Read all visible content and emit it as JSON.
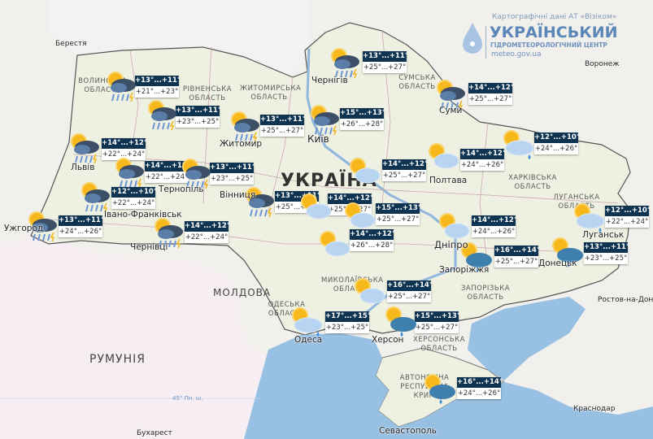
{
  "header": {
    "source": "Картографічні дані АТ «Візіком»",
    "org_title": "УКРАЇНСЬКИЙ",
    "org_subtitle": "ГІДРОМЕТЕОРОЛОГІЧНИЙ ЦЕНТР",
    "website": "meteo.gov.ua"
  },
  "colors": {
    "land": "#f1f0ec",
    "ukraine": "#eef0e2",
    "romania": "#f6eef3",
    "sea": "#98c0e2",
    "box_header": "#0e3452"
  },
  "labels": {
    "countries": {
      "ukraine": "УКРАЇНА",
      "moldova": "МОЛДОВА",
      "romania": "РУМУНІЯ"
    },
    "cities": {
      "berestia": "Берестя",
      "chernihiv": "Чернігів",
      "sumy": "Суми",
      "zhytomyr": "Житомир",
      "kyiv": "Київ",
      "lviv": "Львів",
      "ternopil": "Тернопіль",
      "ivano_frankivsk": "Івано-Франківськ",
      "uzhhorod": "Ужгород",
      "chernivtsi": "Чернівці",
      "vinnytsia": "Вінниця",
      "poltava": "Полтава",
      "dnipro": "Дніпро",
      "zaporizhzhia": "Запоріжжя",
      "donetsk": "Донецьк",
      "luhansk": "Луганськ",
      "odesa": "Одеса",
      "kherson": "Херсон",
      "sevastopol": "Севастополь",
      "voronezh": "Воронеж",
      "rostov": "Ростов-на-Дону",
      "krasnodar": "Краснодар",
      "bucharest": "Бухарест"
    },
    "regions": {
      "volyn": "ВОЛИНСЬКА ОБЛАСТЬ",
      "rivne": "РІВНЕНСЬКА ОБЛАСТЬ",
      "zhytomyr": "ЖИТОМИРСЬКА ОБЛАСТЬ",
      "sumy": "СУМСЬКА ОБЛАСТЬ",
      "kharkiv": "ХАРКІВСЬКА ОБЛАСТЬ",
      "luhansk": "ЛУГАНСЬКА ОБЛАСТЬ",
      "zaporizhzhia": "ЗАПОРІЗЬКА ОБЛАСТЬ",
      "mykolaiv": "МИКОЛАЇВСЬКА ОБЛАСТЬ",
      "odesa": "ОДЕСЬКА ОБЛАСТЬ",
      "kherson": "ХЕРСОНСЬКА ОБЛАСТЬ",
      "crimea": "АВТОНОМНА РЕСПУБЛІКА КРИМ"
    },
    "parallel": "45° Пн. ш."
  },
  "forecasts": [
    {
      "place": "volyn",
      "icon": "thunderstorm",
      "night": "+13°...+11°",
      "day": "+21°...+23°"
    },
    {
      "place": "rivne",
      "icon": "thunderstorm",
      "night": "+13°...+11°",
      "day": "+23°...+25°"
    },
    {
      "place": "zhytomyr",
      "icon": "thunderstorm",
      "night": "+13°...+11°",
      "day": "+25°...+27°"
    },
    {
      "place": "chernihiv",
      "icon": "thunderstorm",
      "night": "+13°...+11°",
      "day": "+25°...+27°"
    },
    {
      "place": "kyiv",
      "icon": "thunderstorm",
      "night": "+15°...+13°",
      "day": "+26°...+28°"
    },
    {
      "place": "sumy",
      "icon": "thunderstorm",
      "night": "+14°...+12°",
      "day": "+25°...+27°"
    },
    {
      "place": "kharkiv",
      "icon": "light-rain",
      "night": "+12°...+10°",
      "day": "+24°...+26°"
    },
    {
      "place": "poltava",
      "icon": "partly-cloudy",
      "night": "+14°...+12°",
      "day": "+24°...+26°"
    },
    {
      "place": "cherkasy",
      "icon": "partly-cloudy",
      "night": "+14°...+12°",
      "day": "+25°...+27°"
    },
    {
      "place": "lviv",
      "icon": "thunderstorm",
      "night": "+14°...+12°",
      "day": "+22°...+24°"
    },
    {
      "place": "ternopil",
      "icon": "thunderstorm",
      "night": "+14°...+12°",
      "day": "+22°...+24°"
    },
    {
      "place": "khmelnytskyi",
      "icon": "thunderstorm",
      "night": "+13°...+11°",
      "day": "+23°...+25°"
    },
    {
      "place": "ivano-frankivsk",
      "icon": "thunderstorm",
      "night": "+12°...+10°",
      "day": "+22°...+24°"
    },
    {
      "place": "zakarpattia",
      "icon": "thunderstorm",
      "night": "+13°...+11°",
      "day": "+24°...+26°"
    },
    {
      "place": "chernivtsi",
      "icon": "thunderstorm",
      "night": "+14°...+12°",
      "day": "+22°...+24°"
    },
    {
      "place": "vinnytsia",
      "icon": "thunderstorm",
      "night": "+13°...+11°",
      "day": "+25°...+27°"
    },
    {
      "place": "central-1",
      "icon": "partly-cloudy",
      "night": "+14°...+12°",
      "day": "+25°...+27°"
    },
    {
      "place": "central-2",
      "icon": "partly-cloudy",
      "night": "+15°...+13°",
      "day": "+25°...+27°"
    },
    {
      "place": "kropyvnytskyi",
      "icon": "partly-cloudy",
      "night": "+14°...+12°",
      "day": "+26°...+28°"
    },
    {
      "place": "dnipro",
      "icon": "partly-cloudy",
      "night": "+14°...+12°",
      "day": "+24°...+26°"
    },
    {
      "place": "zaporizhzhia",
      "icon": "cloudy-rain",
      "night": "+16°...+14°",
      "day": "+25°...+27°"
    },
    {
      "place": "donetsk",
      "icon": "cloudy-rain",
      "night": "+13°...+11°",
      "day": "+23°...+25°"
    },
    {
      "place": "luhansk",
      "icon": "light-rain",
      "night": "+12°...+10°",
      "day": "+22°...+24°"
    },
    {
      "place": "mykolaiv",
      "icon": "partly-cloudy",
      "night": "+16°...+14°",
      "day": "+25°...+27°"
    },
    {
      "place": "odesa",
      "icon": "light-rain",
      "night": "+17°...+15°",
      "day": "+23°...+25°"
    },
    {
      "place": "kherson",
      "icon": "cloudy-rain",
      "night": "+15°...+13°",
      "day": "+25°...+27°"
    },
    {
      "place": "crimea",
      "icon": "cloudy-rain",
      "night": "+16°...+14°",
      "day": "+24°...+26°"
    }
  ]
}
